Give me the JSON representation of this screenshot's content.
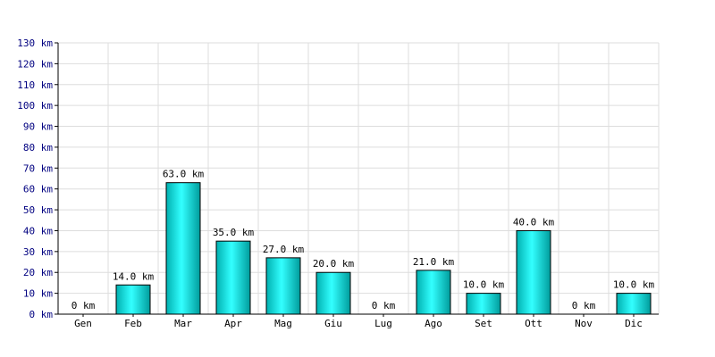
{
  "chart_data": {
    "type": "bar",
    "title": "",
    "xlabel": "",
    "ylabel": "",
    "unit": "km",
    "categories": [
      "Gen",
      "Feb",
      "Mar",
      "Apr",
      "Mag",
      "Giu",
      "Lug",
      "Ago",
      "Set",
      "Ott",
      "Nov",
      "Dic"
    ],
    "values": [
      0,
      14.0,
      63.0,
      35.0,
      27.0,
      20.0,
      0,
      21.0,
      10.0,
      40.0,
      0,
      10.0
    ],
    "value_labels": [
      "0 km",
      "14.0 km",
      "63.0 km",
      "35.0 km",
      "27.0 km",
      "20.0 km",
      "0 km",
      "21.0 km",
      "10.0 km",
      "40.0 km",
      "0 km",
      "10.0 km"
    ],
    "y_ticks": [
      0,
      10,
      20,
      30,
      40,
      50,
      60,
      70,
      80,
      90,
      100,
      110,
      120,
      130
    ],
    "y_tick_labels": [
      "0 km",
      "10 km",
      "20 km",
      "30 km",
      "40 km",
      "50 km",
      "60 km",
      "70 km",
      "80 km",
      "90 km",
      "100 km",
      "110 km",
      "120 km",
      "130 km"
    ],
    "ylim": [
      0,
      130
    ],
    "grid": true,
    "colors": {
      "bar_light": "#33ffff",
      "bar_dark": "#00a8a8",
      "bar_edge": "#000000",
      "grid": "#dddddd",
      "axis": "#000000",
      "y_tick_text": "#000080"
    }
  }
}
